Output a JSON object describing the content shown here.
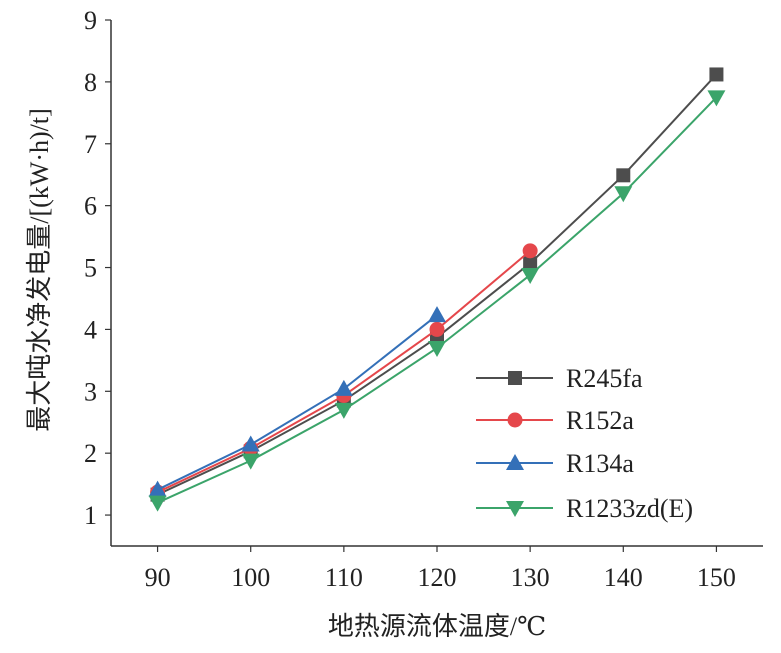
{
  "chart_data": {
    "type": "line",
    "xlabel": "地热源流体温度/℃",
    "ylabel": "最大吨水净发电量/[(kW·h)/t]",
    "xlim": [
      85,
      155
    ],
    "ylim": [
      0.5,
      9
    ],
    "x_ticks": [
      90,
      100,
      110,
      120,
      130,
      140,
      150
    ],
    "y_ticks": [
      1,
      2,
      3,
      4,
      5,
      6,
      7,
      8,
      9
    ],
    "grid": false,
    "legend_position": "bottom-right",
    "series": [
      {
        "name": "R245fa",
        "color": "#4d4d4d",
        "marker": "square",
        "x": [
          90,
          100,
          110,
          120,
          130,
          140,
          150
        ],
        "values": [
          1.33,
          2.03,
          2.85,
          3.87,
          5.07,
          6.49,
          8.12
        ]
      },
      {
        "name": "R152a",
        "color": "#e5474b",
        "marker": "circle",
        "x": [
          90,
          100,
          110,
          120,
          130
        ],
        "values": [
          1.37,
          2.08,
          2.93,
          4.0,
          5.27
        ]
      },
      {
        "name": "R134a",
        "color": "#3470b8",
        "marker": "triangle-up",
        "x": [
          90,
          100,
          110,
          120
        ],
        "values": [
          1.41,
          2.14,
          3.04,
          4.23
        ]
      },
      {
        "name": "R1233zd(E)",
        "color": "#3ba46a",
        "marker": "triangle-down",
        "x": [
          90,
          100,
          110,
          120,
          130,
          140,
          150
        ],
        "values": [
          1.2,
          1.88,
          2.7,
          3.7,
          4.88,
          6.2,
          7.75
        ]
      }
    ]
  }
}
